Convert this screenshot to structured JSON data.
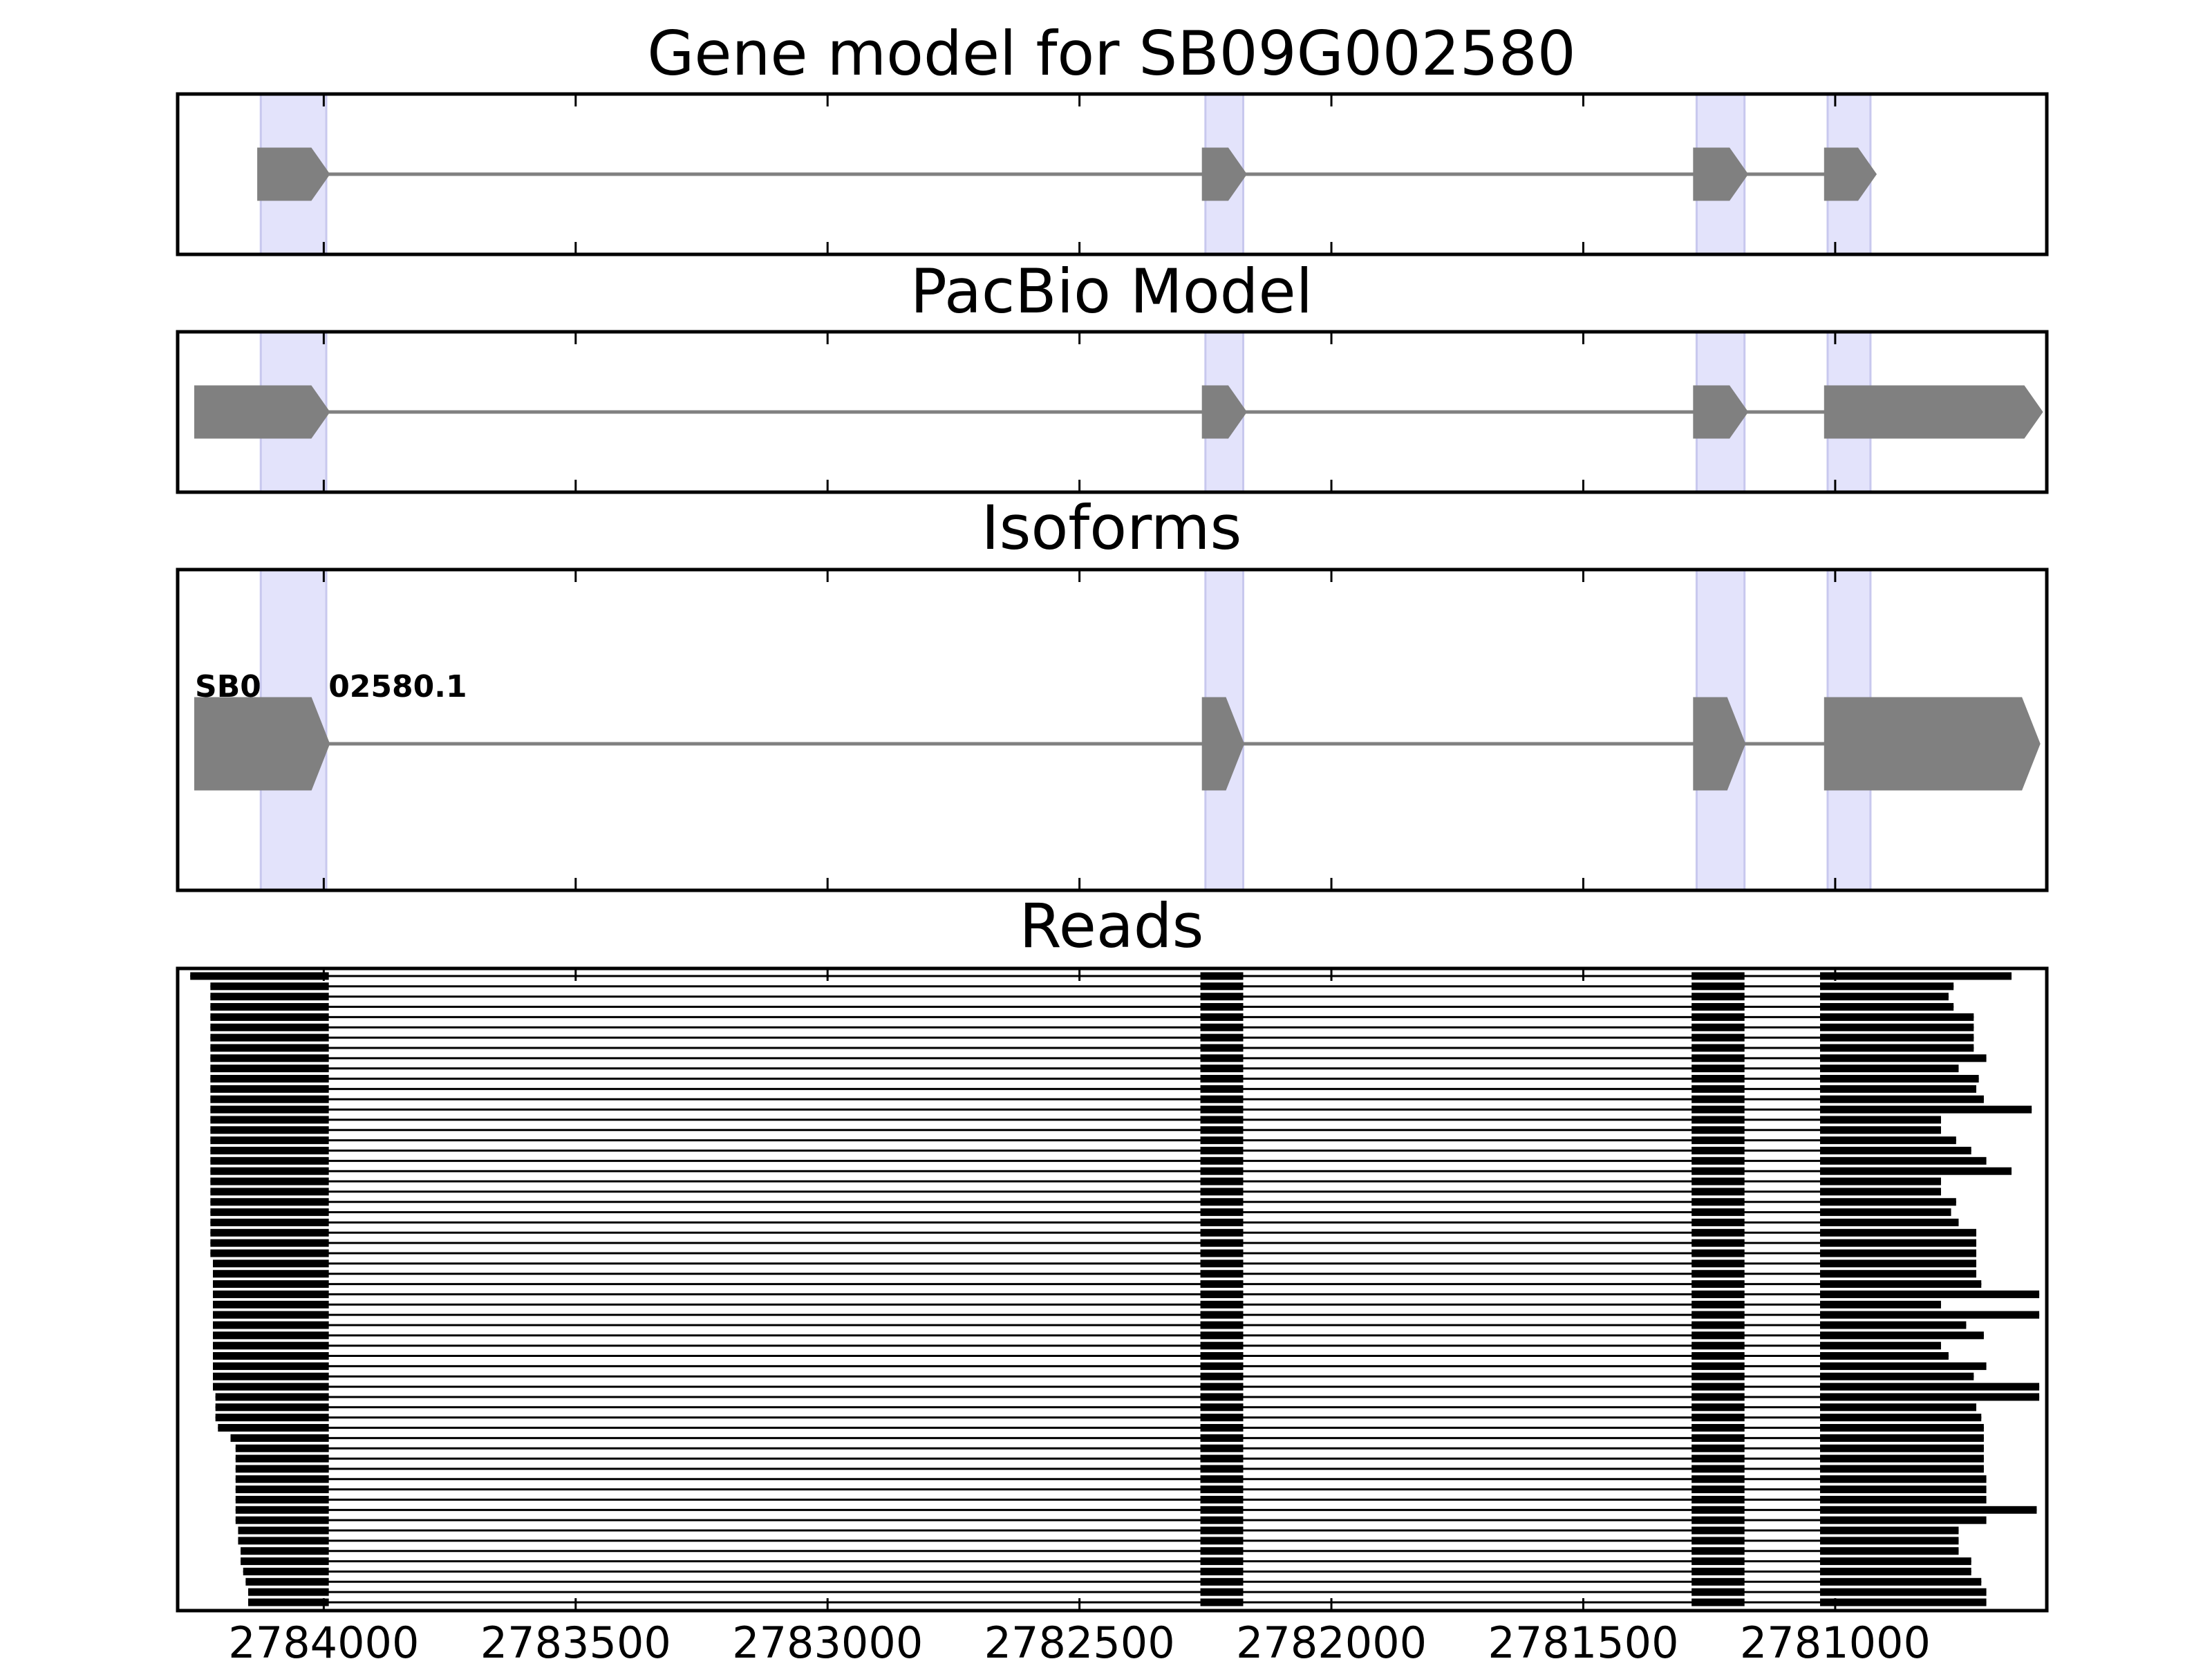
{
  "chart_data": {
    "type": "gene-structure",
    "xlim": [
      2784290,
      2780580
    ],
    "x_ticks": [
      2784000,
      2783500,
      2783000,
      2782500,
      2782000,
      2781500,
      2781000
    ],
    "x_tick_labels": [
      "2784000",
      "2783500",
      "2783000",
      "2782500",
      "2782000",
      "2781500",
      "2781000"
    ],
    "highlight_regions": [
      [
        2784125,
        2783995
      ],
      [
        2782250,
        2782175
      ],
      [
        2781275,
        2781180
      ],
      [
        2781015,
        2780930
      ]
    ],
    "colors": {
      "exon": "#808080",
      "highlight": "#e3e3fb",
      "read": "#000000"
    },
    "panels": [
      {
        "key": "gene_model",
        "title": "Gene model for SB09G002580",
        "track": {
          "exons": [
            [
              2784130,
              2783990
            ],
            [
              2782255,
              2782170
            ],
            [
              2781280,
              2781175
            ],
            [
              2781020,
              2780920
            ]
          ]
        }
      },
      {
        "key": "pacbio",
        "title": "PacBio Model",
        "track": {
          "exons": [
            [
              2784255,
              2783990
            ],
            [
              2782255,
              2782170
            ],
            [
              2781280,
              2781175
            ],
            [
              2781020,
              2780590
            ]
          ]
        }
      },
      {
        "key": "isoforms",
        "title": "Isoforms",
        "isoforms": [
          {
            "name": "SB09G002580.1",
            "exons": [
              [
                2784255,
                2783990
              ],
              [
                2782255,
                2782175
              ],
              [
                2781280,
                2781180
              ],
              [
                2781020,
                2780595
              ]
            ]
          }
        ]
      },
      {
        "key": "reads",
        "title": "Reads",
        "reads": {
          "count": 62,
          "inner_exons": [
            [
              2782260,
              2782175
            ],
            [
              2781285,
              2781180
            ]
          ],
          "first_exon_end": 2783990,
          "last_exon_start": 2781030,
          "starts": [
            2784265,
            2784225,
            2784225,
            2784225,
            2784225,
            2784225,
            2784225,
            2784225,
            2784225,
            2784225,
            2784225,
            2784225,
            2784225,
            2784225,
            2784225,
            2784225,
            2784225,
            2784225,
            2784225,
            2784225,
            2784225,
            2784225,
            2784225,
            2784225,
            2784225,
            2784225,
            2784225,
            2784225,
            2784220,
            2784220,
            2784220,
            2784220,
            2784220,
            2784220,
            2784220,
            2784220,
            2784220,
            2784220,
            2784220,
            2784220,
            2784220,
            2784215,
            2784215,
            2784215,
            2784210,
            2784185,
            2784175,
            2784175,
            2784175,
            2784175,
            2784175,
            2784175,
            2784175,
            2784175,
            2784170,
            2784170,
            2784165,
            2784165,
            2784160,
            2784155,
            2784150,
            2784150
          ],
          "ends": [
            2780650,
            2780765,
            2780775,
            2780765,
            2780725,
            2780725,
            2780725,
            2780725,
            2780700,
            2780755,
            2780715,
            2780720,
            2780705,
            2780610,
            2780790,
            2780790,
            2780760,
            2780730,
            2780700,
            2780650,
            2780790,
            2780790,
            2780760,
            2780770,
            2780755,
            2780720,
            2780720,
            2780720,
            2780720,
            2780720,
            2780710,
            2780595,
            2780790,
            2780595,
            2780740,
            2780705,
            2780790,
            2780775,
            2780700,
            2780725,
            2780595,
            2780595,
            2780720,
            2780710,
            2780705,
            2780705,
            2780705,
            2780705,
            2780705,
            2780700,
            2780700,
            2780700,
            2780600,
            2780700,
            2780755,
            2780755,
            2780755,
            2780730,
            2780730,
            2780710,
            2780700,
            2780700
          ]
        }
      }
    ]
  }
}
